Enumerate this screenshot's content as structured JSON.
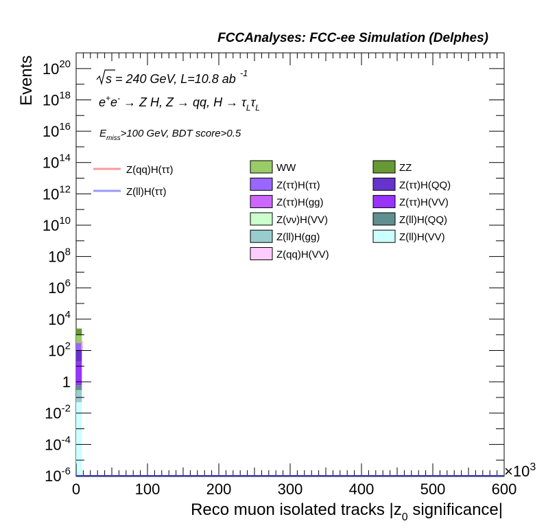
{
  "header": {
    "title": "FCCAnalyses: FCC-ee Simulation (Delphes)"
  },
  "annotations": {
    "line1_sqrt": "s",
    "line1_rest": " = 240 GeV, L=10.8 ab",
    "line1_exp": "-1",
    "process_e1": "e",
    "process_e1_sup": "+",
    "process_e2": "e",
    "process_e2_sup": "-",
    "process_arrow1": " → Z H, Z  → qq, H  → ",
    "process_tau1": "τ",
    "process_tau_sub1": "L",
    "process_tau2": "τ",
    "process_tau_sub2": "L",
    "cut_E": "E",
    "cut_sub": "miss",
    "cut_rest": ">100 GeV, BDT score>0.5"
  },
  "chart_data": {
    "type": "bar",
    "title": "FCCAnalyses: FCC-ee Simulation (Delphes)",
    "xlabel": "Reco muon isolated tracks |z",
    "xlabel_sub": "0",
    "xlabel_rest": " significance|",
    "ylabel": "Events",
    "x_multiplier": "×10",
    "x_multiplier_exp": "3",
    "xlim": [
      0,
      600000
    ],
    "ylim": [
      1e-06,
      1e+21
    ],
    "yscale": "log",
    "x_ticks": [
      {
        "v": 0,
        "label": "0"
      },
      {
        "v": 100000,
        "label": "100"
      },
      {
        "v": 200000,
        "label": "200"
      },
      {
        "v": 300000,
        "label": "300"
      },
      {
        "v": 400000,
        "label": "400"
      },
      {
        "v": 500000,
        "label": "500"
      },
      {
        "v": 600000,
        "label": "600"
      }
    ],
    "y_ticks": [
      {
        "exp": -6,
        "base": "10",
        "sup": "-6"
      },
      {
        "exp": -4,
        "base": "10",
        "sup": "-4"
      },
      {
        "exp": -2,
        "base": "10",
        "sup": "-2"
      },
      {
        "exp": 0,
        "base": "1",
        "sup": ""
      },
      {
        "exp": 2,
        "base": "10",
        "sup": "2"
      },
      {
        "exp": 4,
        "base": "10",
        "sup": "4"
      },
      {
        "exp": 6,
        "base": "10",
        "sup": "6"
      },
      {
        "exp": 8,
        "base": "10",
        "sup": "8"
      },
      {
        "exp": 10,
        "base": "10",
        "sup": "10"
      },
      {
        "exp": 12,
        "base": "10",
        "sup": "12"
      },
      {
        "exp": 14,
        "base": "10",
        "sup": "14"
      },
      {
        "exp": 16,
        "base": "10",
        "sup": "16"
      },
      {
        "exp": 18,
        "base": "10",
        "sup": "18"
      },
      {
        "exp": 20,
        "base": "10",
        "sup": "20"
      }
    ],
    "first_bin": [
      0,
      8000
    ],
    "stacked_bins": [
      {
        "name": "Z(ll)H(VV)",
        "top": 0.05,
        "color": "#ccffff"
      },
      {
        "name": "Z(ll)H(gg)",
        "top": 0.3,
        "color": "#99cccc"
      },
      {
        "name": "Z(ll)H(QQ)",
        "top": 0.6,
        "color": "#5f8f8f"
      },
      {
        "name": "Z(ττ)H(VV)",
        "top": 20,
        "color": "#9933ff"
      },
      {
        "name": "Z(ττ)H(QQ)",
        "top": 100,
        "color": "#6633cc"
      },
      {
        "name": "Z(ττ)H(ττ)",
        "top": 300,
        "color": "#9966ff"
      },
      {
        "name": "WW",
        "top": 1000,
        "color": "#99cc66"
      },
      {
        "name": "ZZ",
        "top": 2500,
        "color": "#669933"
      }
    ],
    "signal_lines": [
      {
        "name": "Z(qq)H(ττ)",
        "color": "#ff9999",
        "x": 8000,
        "y_low": 100,
        "y_high": 400
      },
      {
        "name": "Z(ll)H(ττ)",
        "color": "#9999ff",
        "x": 8000,
        "y_low": 1e-06,
        "y_high": 1e-06
      }
    ],
    "legend": {
      "signals": [
        {
          "label": "Z(qq)H(ττ)",
          "color": "#ff9999"
        },
        {
          "label": "Z(ll)H(ττ)",
          "color": "#9999ff"
        }
      ],
      "backgrounds_col1": [
        {
          "label": "WW",
          "color": "#99cc66"
        },
        {
          "label": "Z(ττ)H(ττ)",
          "color": "#9966ff"
        },
        {
          "label": "Z(ττ)H(gg)",
          "color": "#cc66ff"
        },
        {
          "label": "Z(νν)H(VV)",
          "color": "#ccffcc"
        },
        {
          "label": "Z(ll)H(gg)",
          "color": "#99cccc"
        },
        {
          "label": "Z(qq)H(VV)",
          "color": "#ffccff"
        }
      ],
      "backgrounds_col2": [
        {
          "label": "ZZ",
          "color": "#669933"
        },
        {
          "label": "Z(ττ)H(QQ)",
          "color": "#6633cc"
        },
        {
          "label": "Z(ττ)H(VV)",
          "color": "#9933ff"
        },
        {
          "label": "Z(ll)H(QQ)",
          "color": "#5f8f8f"
        },
        {
          "label": "Z(ll)H(VV)",
          "color": "#ccffff"
        }
      ]
    }
  }
}
